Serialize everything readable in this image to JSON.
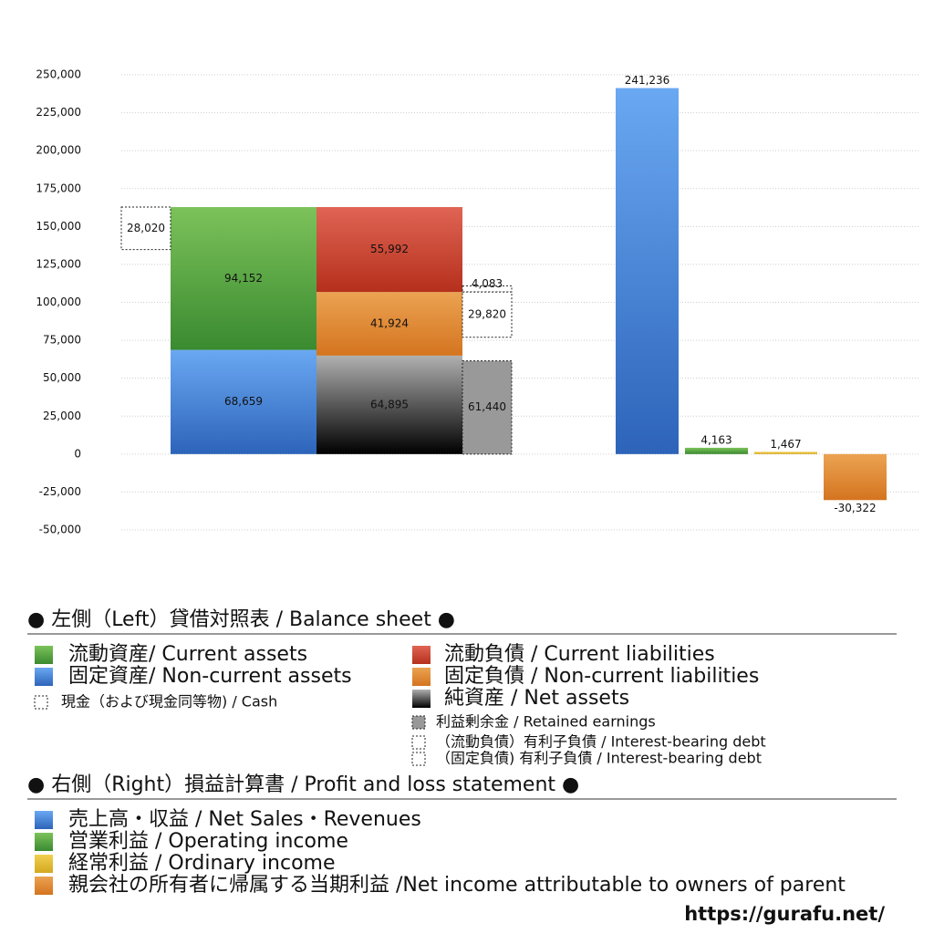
{
  "chart_data": {
    "type": "balance-sheet",
    "ylim": [
      -50000,
      250000
    ],
    "yticks": [
      {
        "value": -50000,
        "label": "-50,000"
      },
      {
        "value": -25000,
        "label": "-25,000"
      },
      0,
      {
        "value": 25000,
        "label": "25,000"
      },
      {
        "value": 50000,
        "label": "50,000"
      },
      {
        "value": 75000,
        "label": "75,000"
      },
      {
        "value": 100000,
        "label": "100,000"
      },
      {
        "value": 125000,
        "label": "125,000"
      },
      {
        "value": 150000,
        "label": "150,000"
      },
      {
        "value": 175000,
        "label": "175,000"
      },
      {
        "value": 200000,
        "label": "200,000"
      },
      {
        "value": 225000,
        "label": "225,000"
      },
      {
        "value": 250000,
        "label": "250,000"
      }
    ],
    "grid": true,
    "balance_sheet": {
      "title": "● 左側（Left）貸借対照表 / Balance sheet ●",
      "assets": [
        {
          "name": "固定資産/ Non-current assets",
          "color": [
            "#6aa8f2",
            "#2d64ba"
          ],
          "value": 68659,
          "value_label": "68,659"
        },
        {
          "name": "流動資産/ Current assets",
          "color": [
            "#7cc25a",
            "#3a8a30"
          ],
          "value": 94152,
          "value_label": "94,152"
        }
      ],
      "liabilities": [
        {
          "name": "純資産 / Net assets",
          "color": [
            "#b0b0b0",
            "#000000"
          ],
          "value": 64895,
          "value_label": "64,895"
        },
        {
          "name": "固定負債 / Non-current liabilities",
          "color": [
            "#eba352",
            "#d4741f"
          ],
          "value": 41924,
          "value_label": "41,924"
        },
        {
          "name": "流動負債 /  Current liabilities",
          "color": [
            "#e06454",
            "#b5301c"
          ],
          "value": 55992,
          "value_label": "55,992"
        }
      ],
      "cash": {
        "name": "現金（および現金同等物) / Cash",
        "value": 28020,
        "value_label": "28,020"
      },
      "retained_earnings": {
        "name": "利益剰余金 / Retained earnings",
        "color": [
          "#999999",
          "#999999"
        ],
        "value": 61440,
        "value_label": "61,440"
      },
      "interest_bearing_debt": [
        {
          "name": "（流動負債）有利子負債 / Interest-bearing debt",
          "value": 4083,
          "value_label": "4,083"
        },
        {
          "name": "（固定負債) 有利子負債 / Interest-bearing debt",
          "value": 29820,
          "value_label": "29,820"
        }
      ]
    },
    "profit_loss": {
      "title": "● 右側（Right）損益計算書 / Profit and loss statement ●",
      "series": [
        {
          "name": "売上高・収益 / Net Sales・Revenues",
          "color": [
            "#6aa8f2",
            "#2d64ba"
          ],
          "value": 241236,
          "value_label": "241,236"
        },
        {
          "name": "営業利益 / Operating income",
          "color": [
            "#7cc25a",
            "#3a8a30"
          ],
          "value": 4163,
          "value_label": "4,163"
        },
        {
          "name": "経常利益 / Ordinary income",
          "color": [
            "#f0d050",
            "#d4a820"
          ],
          "value": 1467,
          "value_label": "1,467"
        },
        {
          "name": "親会社の所有者に帰属する当期利益 /Net income attributable to owners of parent",
          "color": [
            "#eba352",
            "#d4741f"
          ],
          "value": -30322,
          "value_label": "-30,322"
        }
      ]
    },
    "source": "https://gurafu.net/"
  }
}
